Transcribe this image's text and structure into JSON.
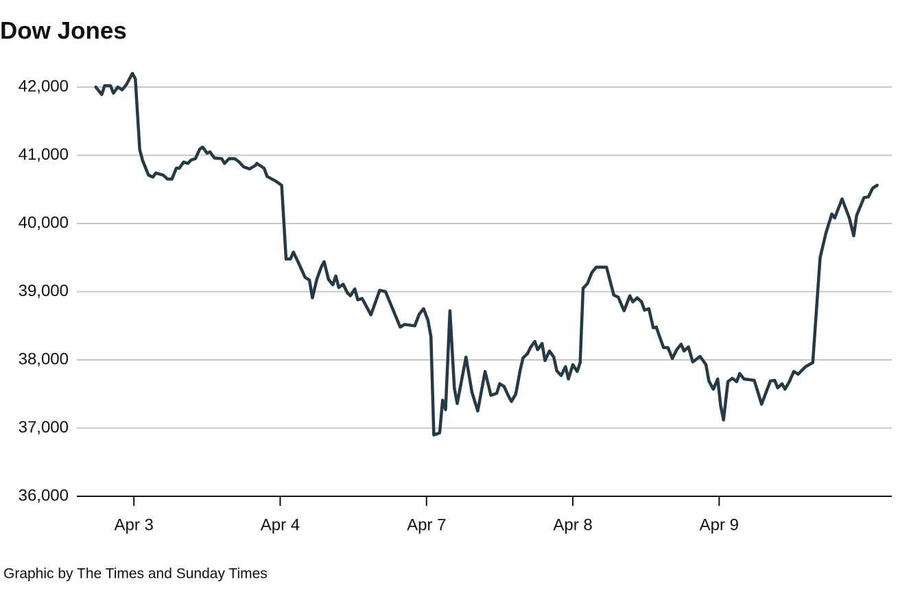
{
  "chart_data": {
    "type": "line",
    "title": "Dow Jones",
    "source": "Graphic by The Times and Sunday Times",
    "x": [
      -0.26,
      -0.22,
      -0.2,
      -0.16,
      -0.14,
      -0.11,
      -0.08,
      -0.05,
      -0.01,
      0.01,
      0.04,
      0.06,
      0.1,
      0.13,
      0.15,
      0.2,
      0.23,
      0.26,
      0.29,
      0.31,
      0.34,
      0.37,
      0.39,
      0.42,
      0.45,
      0.47,
      0.5,
      0.52,
      0.55,
      0.6,
      0.62,
      0.65,
      0.69,
      0.72,
      0.75,
      0.79,
      0.83,
      0.84,
      0.89,
      0.91,
      0.97,
      1.01,
      1.04,
      1.07,
      1.09,
      1.13,
      1.17,
      1.2,
      1.22,
      1.25,
      1.28,
      1.3,
      1.33,
      1.36,
      1.38,
      1.4,
      1.43,
      1.46,
      1.48,
      1.51,
      1.53,
      1.56,
      1.62,
      1.68,
      1.72,
      1.82,
      1.85,
      1.92,
      1.95,
      1.98,
      2.01,
      2.03,
      2.05,
      2.09,
      2.11,
      2.13,
      2.16,
      2.19,
      2.21,
      2.27,
      2.31,
      2.35,
      2.4,
      2.44,
      2.48,
      2.5,
      2.53,
      2.56,
      2.58,
      2.61,
      2.64,
      2.66,
      2.69,
      2.71,
      2.74,
      2.76,
      2.79,
      2.81,
      2.84,
      2.87,
      2.89,
      2.92,
      2.95,
      2.97,
      3.0,
      3.03,
      3.05,
      3.07,
      3.1,
      3.13,
      3.16,
      3.23,
      3.28,
      3.31,
      3.35,
      3.39,
      3.41,
      3.44,
      3.47,
      3.49,
      3.52,
      3.55,
      3.57,
      3.62,
      3.65,
      3.68,
      3.71,
      3.74,
      3.76,
      3.79,
      3.82,
      3.87,
      3.91,
      3.93,
      3.96,
      3.99,
      4.01,
      4.03,
      4.06,
      4.09,
      4.12,
      4.14,
      4.17,
      4.24,
      4.29,
      4.35,
      4.38,
      4.4,
      4.43,
      4.45,
      4.48,
      4.51,
      4.54,
      4.59,
      4.64,
      4.69,
      4.73,
      4.77,
      4.79,
      4.84,
      4.89,
      4.92,
      4.94,
      4.99,
      5.02,
      5.05,
      5.08
    ],
    "series": [
      {
        "name": "Dow Jones",
        "color": "#253a47",
        "values": [
          42000,
          41890,
          42020,
          42020,
          41910,
          42000,
          41960,
          42040,
          42200,
          42120,
          41080,
          40920,
          40710,
          40680,
          40740,
          40710,
          40650,
          40650,
          40810,
          40810,
          40900,
          40880,
          40930,
          40950,
          41090,
          41120,
          41030,
          41050,
          40960,
          40950,
          40880,
          40950,
          40950,
          40900,
          40830,
          40800,
          40850,
          40880,
          40810,
          40690,
          40620,
          40560,
          39480,
          39480,
          39580,
          39400,
          39210,
          39170,
          38910,
          39180,
          39360,
          39440,
          39180,
          39100,
          39230,
          39060,
          39110,
          38980,
          38940,
          39040,
          38880,
          38900,
          38660,
          39020,
          39000,
          38480,
          38520,
          38500,
          38670,
          38750,
          38580,
          38340,
          36900,
          36930,
          37410,
          37270,
          38720,
          37590,
          37360,
          38040,
          37530,
          37250,
          37830,
          37480,
          37510,
          37650,
          37610,
          37470,
          37390,
          37500,
          37850,
          38030,
          38090,
          38180,
          38270,
          38150,
          38240,
          37990,
          38130,
          38040,
          37840,
          37770,
          37900,
          37720,
          37930,
          37830,
          37960,
          39050,
          39120,
          39280,
          39360,
          39360,
          38950,
          38920,
          38720,
          38940,
          38850,
          38910,
          38850,
          38730,
          38750,
          38470,
          38480,
          38180,
          38180,
          38020,
          38150,
          38230,
          38130,
          38190,
          37970,
          38050,
          37930,
          37690,
          37570,
          37720,
          37330,
          37120,
          37680,
          37730,
          37680,
          37800,
          37720,
          37700,
          37350,
          37690,
          37700,
          37590,
          37650,
          37570,
          37680,
          37830,
          37790,
          37900,
          37960,
          39500,
          39860,
          40140,
          40080,
          40360,
          40080,
          39820,
          40120,
          40380,
          40390,
          40520,
          40560
        ]
      }
    ],
    "xlim": [
      -0.39,
      5.18
    ],
    "xticks": [
      {
        "value": 0,
        "label": "Apr 3"
      },
      {
        "value": 1,
        "label": "Apr 4"
      },
      {
        "value": 2,
        "label": "Apr 7"
      },
      {
        "value": 3,
        "label": "Apr 8"
      },
      {
        "value": 4,
        "label": "Apr 9"
      }
    ],
    "ylim": [
      36000,
      42000
    ],
    "yticks": [
      {
        "value": 36000,
        "label": "36,000"
      },
      {
        "value": 37000,
        "label": "37,000"
      },
      {
        "value": 38000,
        "label": "38,000"
      },
      {
        "value": 39000,
        "label": "39,000"
      },
      {
        "value": 40000,
        "label": "40,000"
      },
      {
        "value": 41000,
        "label": "41,000"
      },
      {
        "value": 42000,
        "label": "42,000"
      }
    ],
    "grid": true
  }
}
